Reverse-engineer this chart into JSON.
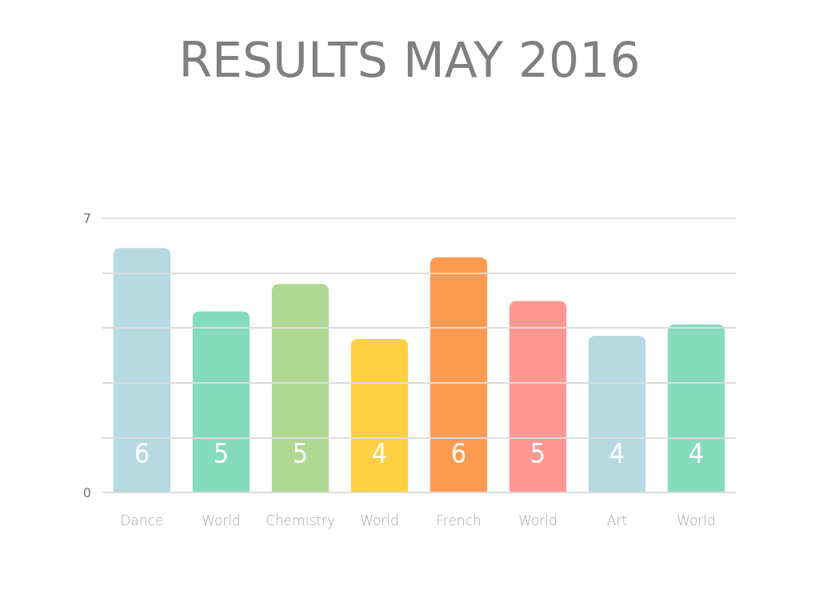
{
  "chart_data": {
    "type": "bar",
    "title": "RESULTS MAY 2016",
    "categories": [
      "Dance",
      "World",
      "Chemistry",
      "World",
      "French",
      "World",
      "Art",
      "World"
    ],
    "values": [
      6.24,
      4.62,
      5.32,
      3.92,
      6.0,
      4.89,
      4.0,
      4.29
    ],
    "value_labels": [
      "6",
      "5",
      "5",
      "4",
      "6",
      "5",
      "4",
      "4"
    ],
    "colors": [
      "#b7d9e2",
      "#84dcbd",
      "#afd892",
      "#ffd044",
      "#ff9b51",
      "#ff9893",
      "#b7d9e2",
      "#84dcbd"
    ],
    "ylim": [
      0,
      7
    ],
    "yticks": [
      0,
      {
        "value": 1.4,
        "label": null
      },
      {
        "value": 2.8,
        "label": null
      },
      {
        "value": 4.2,
        "label": null
      },
      {
        "value": 5.6,
        "label": null
      },
      7
    ],
    "grid": "y"
  }
}
